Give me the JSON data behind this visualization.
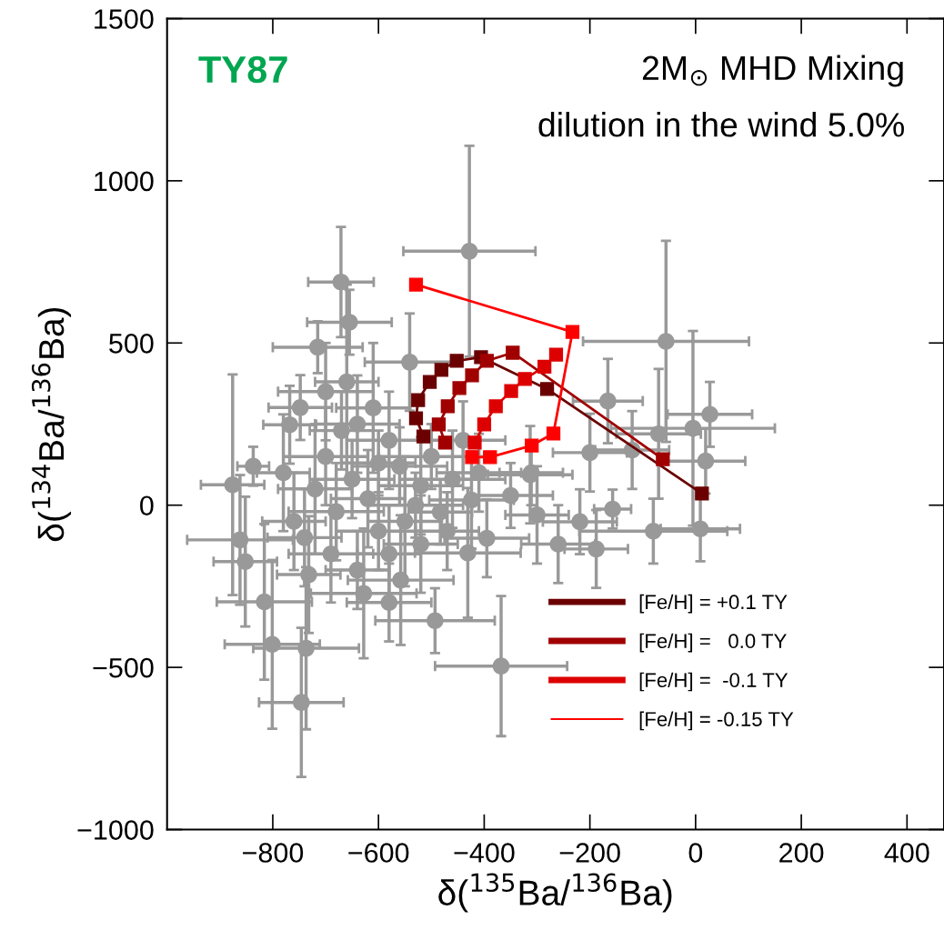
{
  "chart_data": {
    "type": "scatter",
    "xlabel": "δ($^{135}$Ba/$^{136}$Ba)",
    "ylabel": "δ($^{134}$Ba/$^{136}$Ba)",
    "annotations": [
      "TY87",
      "2M$_{⊙}$ MHD Mixing",
      "dilution in the wind 5.0%"
    ],
    "xlim": [
      -1000,
      470
    ],
    "ylim": [
      -1000,
      1500
    ],
    "xticks": [
      {
        "value": -800,
        "label": "−800"
      },
      {
        "value": -600,
        "label": "−600"
      },
      {
        "value": -400,
        "label": "−400"
      },
      {
        "value": -200,
        "label": "−200"
      },
      0,
      200,
      400
    ],
    "yticks": [
      {
        "value": -1000,
        "label": "−1000"
      },
      {
        "value": -500,
        "label": "−500"
      },
      0,
      500,
      1000,
      1500
    ],
    "grid": false,
    "legend": "bottom right",
    "series": [
      {
        "color": "#999999",
        "marker": "circle",
        "x": [
          -428,
          -671,
          -655,
          -715,
          -541,
          -56,
          27,
          -5,
          19,
          9,
          -166,
          -200,
          -313,
          -157,
          -219,
          -395,
          -431,
          -188,
          -368,
          -424,
          -493,
          -746,
          -801,
          -737,
          -816,
          -876,
          -862,
          -852,
          -837,
          -732,
          -628,
          -558,
          -483,
          -311,
          -768,
          -748,
          -700,
          -660,
          -640,
          -610,
          -580,
          -560,
          -520,
          -500,
          -700,
          -720,
          -680,
          -650,
          -620,
          -600,
          -580,
          -550,
          -530,
          -460,
          -440,
          -760,
          -780,
          -690,
          -640,
          -600,
          -670,
          -740,
          -580,
          -520,
          -470,
          -410,
          -350,
          -300,
          -260,
          -80,
          -120,
          -70
        ],
        "values": [
          783,
          688,
          564,
          487,
          441,
          505,
          280,
          237,
          136,
          -73,
          321,
          162,
          94,
          -12,
          -51,
          -102,
          -147,
          -135,
          -496,
          16,
          -356,
          -608,
          -429,
          -441,
          -298,
          63,
          -107,
          -174,
          120,
          -214,
          -272,
          -231,
          -21,
          100,
          248,
          301,
          350,
          380,
          250,
          300,
          200,
          120,
          60,
          150,
          150,
          50,
          -20,
          80,
          20,
          -80,
          -150,
          -50,
          0,
          80,
          200,
          -50,
          100,
          -150,
          -200,
          130,
          230,
          -100,
          -300,
          -120,
          -80,
          100,
          30,
          -30,
          -120,
          -80,
          170,
          220
        ],
        "xerrors": [
          125,
          62,
          80,
          85,
          85,
          157,
          80,
          155,
          75,
          75,
          66,
          70,
          80,
          35,
          70,
          80,
          100,
          60,
          125,
          80,
          113,
          80,
          90,
          100,
          90,
          60,
          100,
          60,
          30,
          60,
          100,
          100,
          60,
          60,
          50,
          60,
          90,
          60,
          80,
          70,
          80,
          90,
          80,
          100,
          80,
          70,
          90,
          80,
          70,
          80,
          60,
          70,
          90,
          100,
          80,
          60,
          50,
          80,
          60,
          70,
          60,
          70,
          80,
          70,
          60,
          80,
          80,
          60,
          70,
          140,
          70,
          80
        ],
        "errors": [
          325,
          170,
          100,
          80,
          150,
          310,
          100,
          300,
          100,
          100,
          130,
          120,
          150,
          60,
          100,
          120,
          200,
          120,
          216,
          150,
          100,
          230,
          260,
          250,
          240,
          340,
          200,
          200,
          60,
          180,
          200,
          200,
          100,
          100,
          120,
          100,
          150,
          300,
          150,
          200,
          150,
          120,
          150,
          100,
          150,
          200,
          150,
          120,
          150,
          120,
          150,
          200,
          100,
          150,
          120,
          150,
          180,
          150,
          120,
          100,
          120,
          150,
          120,
          150,
          120,
          120,
          100,
          150,
          120,
          100,
          120,
          200
        ]
      },
      {
        "type": "line",
        "name": "[Fe/H] = +0.1 TY",
        "color": "#6b0000",
        "marker": "square",
        "line_style": "solid",
        "x": [
          -515,
          -529,
          -525,
          -503,
          -481,
          -452,
          -406,
          -281,
          12
        ],
        "values": [
          212,
          268,
          324,
          380,
          417,
          445,
          456,
          358,
          36
        ]
      },
      {
        "type": "line",
        "name": "[Fe/H] =   0.0 TY",
        "color": "#a00000",
        "marker": "square",
        "line_style": "solid",
        "x": [
          -474,
          -486,
          -469,
          -447,
          -423,
          -395,
          -346,
          -62
        ],
        "values": [
          193,
          249,
          305,
          361,
          400,
          445,
          470,
          142
        ]
      },
      {
        "type": "line",
        "name": "[Fe/H] =  -0.1 TY",
        "color": "#dd0000",
        "marker": "square",
        "line_style": "solid",
        "x": [
          -418,
          -400,
          -378,
          -349,
          -323,
          -286,
          -264
        ],
        "values": [
          193,
          249,
          305,
          352,
          389,
          427,
          464
        ]
      },
      {
        "type": "line",
        "name": "[Fe/H] = -0.15 TY",
        "color": "#ff0000",
        "marker": "square",
        "line_style": "solid",
        "x": [
          -423,
          -389,
          -310,
          -269,
          -233,
          -529
        ],
        "values": [
          148,
          148,
          184,
          221,
          534,
          680
        ]
      }
    ]
  }
}
